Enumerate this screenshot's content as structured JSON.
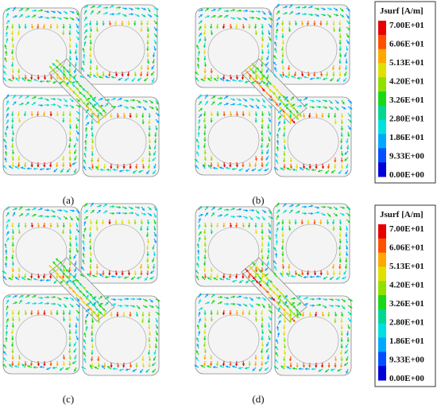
{
  "panels": [
    {
      "id": "a",
      "caption": "(a)"
    },
    {
      "id": "b",
      "caption": "(b)"
    },
    {
      "id": "c",
      "caption": "(c)"
    },
    {
      "id": "d",
      "caption": "(d)"
    }
  ],
  "legends": [
    {
      "title": "Jsurf [A/m]",
      "ticks": [
        "7.00E+01",
        "6.06E+01",
        "5.13E+01",
        "4.20E+01",
        "3.26E+01",
        "2.80E+01",
        "1.86E+01",
        "9.33E+00",
        "0.00E+00"
      ]
    },
    {
      "title": "Jsurf [A/m]",
      "ticks": [
        "7.00E+01",
        "6.06E+01",
        "5.13E+01",
        "4.20E+01",
        "3.26E+01",
        "2.80E+01",
        "1.86E+01",
        "9.33E+00",
        "0.00E+00"
      ]
    }
  ],
  "colormap": [
    "#0000d8",
    "#0050ff",
    "#00a8ff",
    "#00e0e0",
    "#00d890",
    "#18d818",
    "#90e000",
    "#e0e000",
    "#ffa800",
    "#ff5000",
    "#e80000"
  ]
}
